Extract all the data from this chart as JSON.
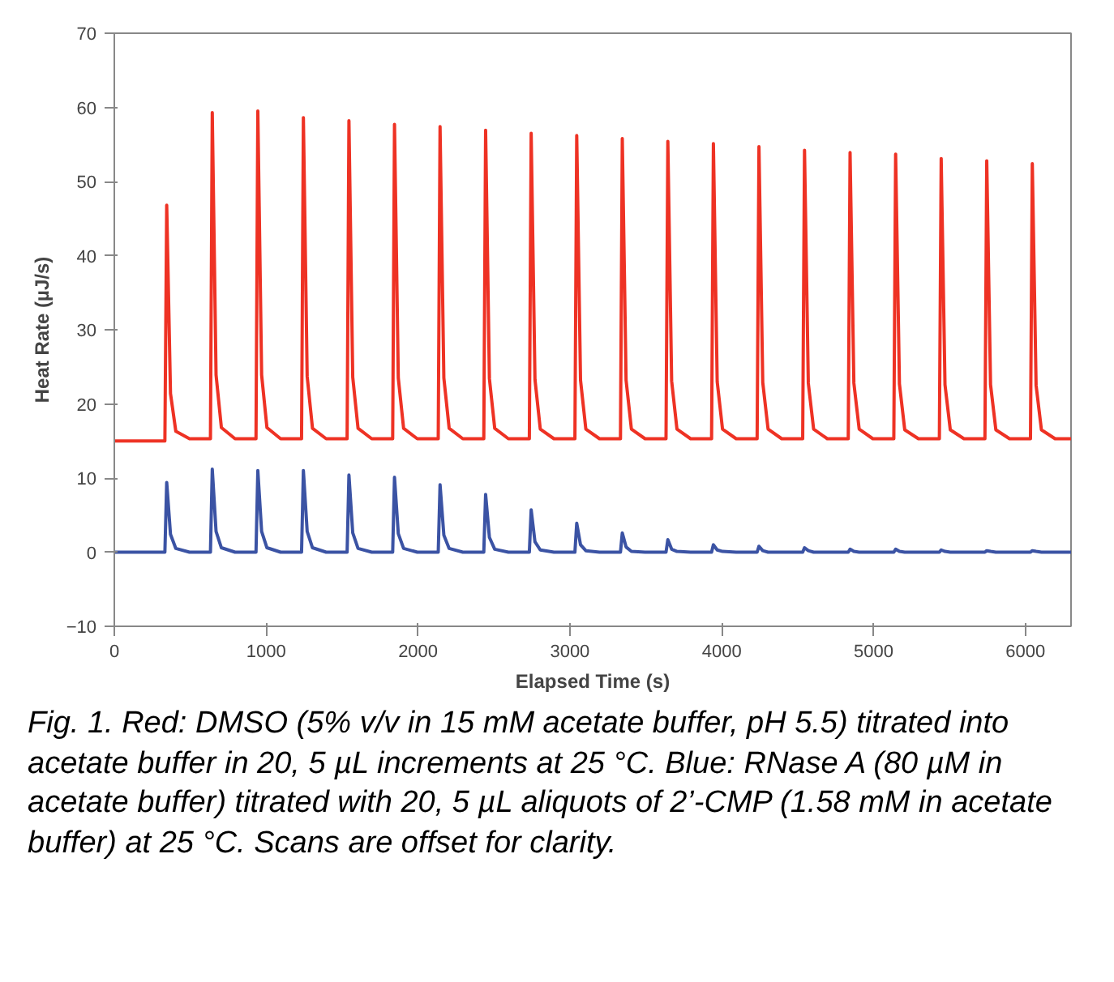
{
  "chart_data": {
    "type": "line",
    "xlabel": "Elapsed Time (s)",
    "ylabel": "Heat Rate (µJ/s)",
    "xlim": [
      0,
      6300
    ],
    "ylim": [
      -10,
      70
    ],
    "xticks": [
      0,
      1000,
      2000,
      3000,
      4000,
      5000,
      6000
    ],
    "yticks": [
      -10,
      0,
      10,
      20,
      30,
      40,
      50,
      60,
      70
    ],
    "grid": false,
    "x": [
      0,
      333,
      345,
      370,
      405,
      495,
      633,
      645,
      670,
      705,
      795,
      933,
      945,
      970,
      1005,
      1095,
      1233,
      1245,
      1270,
      1305,
      1395,
      1533,
      1545,
      1570,
      1605,
      1695,
      1833,
      1845,
      1870,
      1905,
      1995,
      2133,
      2145,
      2170,
      2205,
      2295,
      2433,
      2445,
      2470,
      2505,
      2595,
      2733,
      2745,
      2770,
      2805,
      2895,
      3033,
      3045,
      3070,
      3105,
      3195,
      3333,
      3345,
      3370,
      3405,
      3495,
      3633,
      3645,
      3670,
      3705,
      3795,
      3933,
      3945,
      3970,
      4005,
      4095,
      4233,
      4245,
      4270,
      4305,
      4395,
      4533,
      4545,
      4570,
      4605,
      4695,
      4833,
      4845,
      4870,
      4905,
      4995,
      5133,
      5145,
      5170,
      5205,
      5295,
      5433,
      5445,
      5470,
      5505,
      5595,
      5733,
      5745,
      5770,
      5805,
      5895,
      6033,
      6045,
      6070,
      6105,
      6195,
      6300
    ],
    "series": [
      {
        "color": "#ee3224",
        "values": [
          15,
          15,
          46.8,
          21.4,
          16.3,
          15.3,
          15.3,
          59.3,
          23.9,
          16.8,
          15.3,
          15.3,
          59.5,
          23.9,
          16.8,
          15.3,
          15.3,
          58.6,
          23.7,
          16.7,
          15.3,
          15.3,
          58.2,
          23.6,
          16.7,
          15.3,
          15.3,
          57.7,
          23.5,
          16.7,
          15.3,
          15.3,
          57.4,
          23.5,
          16.7,
          15.3,
          15.3,
          56.9,
          23.4,
          16.7,
          15.3,
          15.3,
          56.5,
          23.3,
          16.6,
          15.3,
          15.3,
          56.2,
          23.2,
          16.6,
          15.3,
          15.3,
          55.8,
          23.2,
          16.6,
          15.3,
          15.3,
          55.4,
          23.1,
          16.6,
          15.3,
          15.3,
          55.1,
          23.0,
          16.6,
          15.3,
          15.3,
          54.7,
          22.9,
          16.6,
          15.3,
          15.3,
          54.2,
          22.8,
          16.6,
          15.3,
          15.3,
          53.9,
          22.8,
          16.6,
          15.3,
          15.3,
          53.7,
          22.7,
          16.5,
          15.3,
          15.3,
          53.1,
          22.6,
          16.5,
          15.3,
          15.3,
          52.8,
          22.6,
          16.5,
          15.3,
          15.3,
          52.4,
          22.5,
          16.5,
          15.3,
          15.3
        ]
      },
      {
        "color": "#3b53a4",
        "values": [
          0,
          0,
          9.4,
          2.4,
          0.5,
          0,
          0,
          11.2,
          2.8,
          0.6,
          0,
          0,
          11.0,
          2.8,
          0.6,
          0,
          0,
          11.0,
          2.8,
          0.6,
          0,
          0,
          10.4,
          2.6,
          0.5,
          0,
          0,
          10.1,
          2.5,
          0.5,
          0,
          0,
          9.1,
          2.3,
          0.5,
          0,
          0,
          7.8,
          2.0,
          0.4,
          0,
          0,
          5.7,
          1.4,
          0.3,
          0,
          0,
          3.9,
          1.0,
          0.2,
          0,
          0,
          2.6,
          0.7,
          0.1,
          0,
          0,
          1.7,
          0.4,
          0.1,
          0,
          0,
          1.0,
          0.3,
          0.1,
          0,
          0,
          0.8,
          0.2,
          0,
          0,
          0,
          0.6,
          0.2,
          0,
          0,
          0,
          0.4,
          0.1,
          0,
          0,
          0,
          0.4,
          0.1,
          0,
          0,
          0,
          0.3,
          0.1,
          0,
          0,
          0,
          0.2,
          0.1,
          0,
          0,
          0,
          0.2,
          0.1,
          0,
          0,
          0
        ]
      }
    ],
    "annotations": [
      "Fig. 1. Red: DMSO (5% v/v in 15 mM acetate buffer, pH 5.5) titrated into acetate buffer in 20, 5 µL increments at 25 °C. Blue: RNase A (80 µM in acetate buffer) titrated with 20, 5 µL aliquots of 2’-CMP (1.58 mM in acetate buffer) at 25 °C. Scans are offset for clarity."
    ]
  }
}
